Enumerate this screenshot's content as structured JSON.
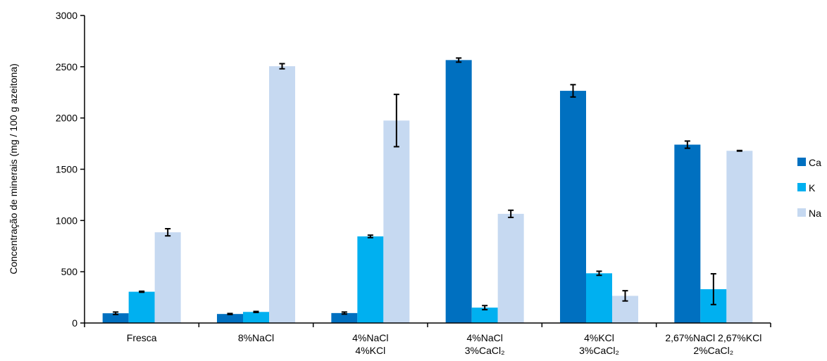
{
  "chart_data": {
    "type": "bar",
    "title": "",
    "xlabel": "",
    "ylabel": "Concentração de minerais (mg / 100 g azeitona)",
    "ylim": [
      0,
      3000
    ],
    "yticks": [
      0,
      500,
      1000,
      1500,
      2000,
      2500,
      3000
    ],
    "grid": false,
    "legend_position": "right",
    "categories": [
      [
        "Fresca"
      ],
      [
        "8%NaCl"
      ],
      [
        "4%NaCl",
        "4%KCl"
      ],
      [
        "4%NaCl",
        "3%CaCl₂"
      ],
      [
        "4%KCl",
        "3%CaCl₂"
      ],
      [
        "2,67%NaCl 2,67%KCl",
        "2%CaCl₂"
      ]
    ],
    "series": [
      {
        "name": "Ca",
        "color": "#0070C0",
        "values": [
          95,
          88,
          97,
          2565,
          2265,
          1740
        ],
        "errors": [
          12,
          5,
          10,
          20,
          60,
          35
        ]
      },
      {
        "name": "K",
        "color": "#00B0F0",
        "values": [
          305,
          108,
          845,
          150,
          485,
          330
        ],
        "errors": [
          5,
          5,
          12,
          20,
          20,
          150
        ]
      },
      {
        "name": "Na",
        "color": "#C6D9F1",
        "values": [
          885,
          2505,
          1975,
          1065,
          265,
          1680
        ],
        "errors": [
          35,
          25,
          255,
          35,
          50,
          3
        ]
      }
    ]
  }
}
